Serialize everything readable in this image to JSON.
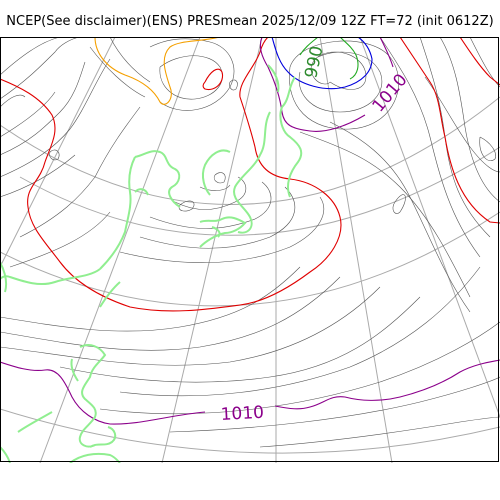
{
  "header": {
    "title": "NCEP(See disclaimer)(ENS) PRESmean 2025/12/09 12Z FT=72 (init 0612Z)"
  },
  "map": {
    "contour_labels": [
      {
        "text": "990",
        "color": "#2e8b2e"
      },
      {
        "text": "1010",
        "color": "#8b008b"
      },
      {
        "text": "1010",
        "color": "#8b008b"
      }
    ],
    "colors": {
      "isobar": "#555555",
      "isobar_red": "#e00000",
      "isobar_orange": "#f5a000",
      "isobar_blue": "#0000dd",
      "isobar_green": "#22aa22",
      "isobar_purple": "#8b008b",
      "coastline": "#90ee90",
      "graticule": "#aaaaaa"
    }
  }
}
